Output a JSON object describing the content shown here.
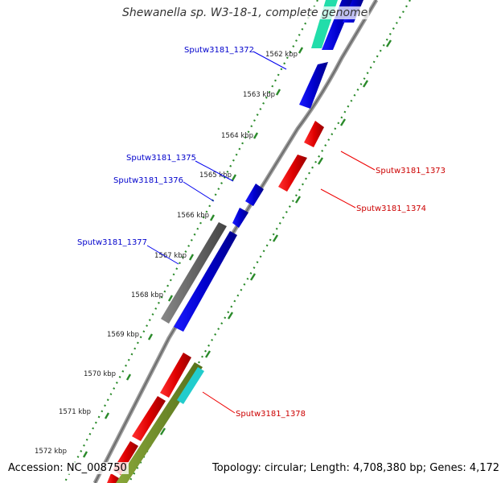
{
  "title": "Shewanella sp. W3-18-1, complete genome",
  "accession": "Accession: NC_008750",
  "summary": "Topology: circular; Length: 4,708,380 bp; Genes: 4,172",
  "colors": {
    "forward_gene": "#0000ee",
    "reverse_gene": "#ee0000",
    "backbone": "#888888",
    "ticks": "#2a8a2a",
    "grey_feature": "#666666",
    "olive_feature": "#6b8a1f",
    "cyan_feature": "#22cccc",
    "teal_feature": "#22ddaa"
  },
  "kbp_labels": [
    "1562 kbp",
    "1563 kbp",
    "1564 kbp",
    "1565 kbp",
    "1566 kbp",
    "1567 kbp",
    "1568 kbp",
    "1569 kbp",
    "1570 kbp",
    "1571 kbp",
    "1572 kbp"
  ],
  "gene_labels": {
    "g1372": "Sputw3181_1372",
    "g1373": "Sputw3181_1373",
    "g1374": "Sputw3181_1374",
    "g1375": "Sputw3181_1375",
    "g1376": "Sputw3181_1376",
    "g1377": "Sputw3181_1377",
    "g1378": "Sputw3181_1378"
  }
}
